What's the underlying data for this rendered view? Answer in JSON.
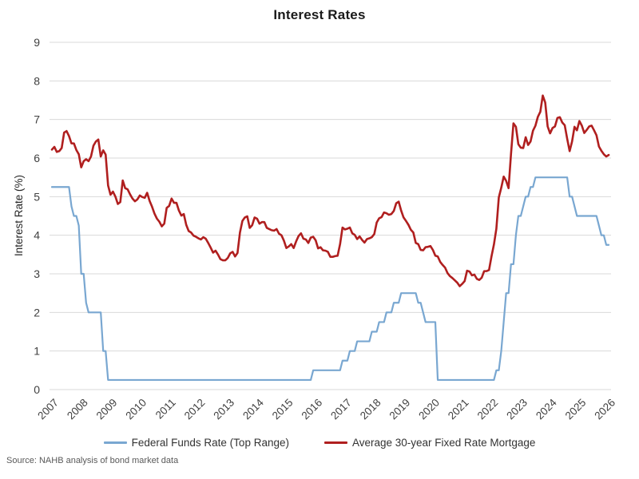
{
  "title": "Interest Rates",
  "y_axis_title": "Interest Rate (%)",
  "source": "Source: NAHB analysis of bond market data",
  "colors": {
    "grid": "#d9d9d9",
    "tick_text": "#404040",
    "background": "#ffffff"
  },
  "legend": [
    {
      "label": "Federal Funds Rate (Top Range)",
      "color": "#79A7D1"
    },
    {
      "label": "Average 30-year Fixed Rate Mortgage",
      "color": "#B01F1F"
    }
  ],
  "chart_data": {
    "type": "line",
    "title": "Interest Rates",
    "xlabel": "",
    "ylabel": "Interest Rate (%)",
    "ylim": [
      0,
      9
    ],
    "xlim": [
      2007,
      2026.08
    ],
    "y_ticks": [
      0,
      1,
      2,
      3,
      4,
      5,
      6,
      7,
      8,
      9
    ],
    "x_ticks": [
      "2007",
      "2008",
      "2009",
      "2010",
      "2011",
      "2012",
      "2013",
      "2014",
      "2015",
      "2016",
      "2017",
      "2018",
      "2019",
      "2020",
      "2021",
      "2022",
      "2023",
      "2024",
      "2025",
      "2026"
    ],
    "grid": "horizontal",
    "legend_position": "bottom",
    "x_start_year": 2007,
    "x_interval": "monthly",
    "series": [
      {
        "name": "Federal Funds Rate (Top Range)",
        "color": "#79A7D1",
        "stroke_width": 2.2,
        "values": [
          5.25,
          5.25,
          5.25,
          5.25,
          5.25,
          5.25,
          5.25,
          5.25,
          4.75,
          4.5,
          4.5,
          4.25,
          3.0,
          3.0,
          2.25,
          2.0,
          2.0,
          2.0,
          2.0,
          2.0,
          2.0,
          1.0,
          1.0,
          0.25,
          0.25,
          0.25,
          0.25,
          0.25,
          0.25,
          0.25,
          0.25,
          0.25,
          0.25,
          0.25,
          0.25,
          0.25,
          0.25,
          0.25,
          0.25,
          0.25,
          0.25,
          0.25,
          0.25,
          0.25,
          0.25,
          0.25,
          0.25,
          0.25,
          0.25,
          0.25,
          0.25,
          0.25,
          0.25,
          0.25,
          0.25,
          0.25,
          0.25,
          0.25,
          0.25,
          0.25,
          0.25,
          0.25,
          0.25,
          0.25,
          0.25,
          0.25,
          0.25,
          0.25,
          0.25,
          0.25,
          0.25,
          0.25,
          0.25,
          0.25,
          0.25,
          0.25,
          0.25,
          0.25,
          0.25,
          0.25,
          0.25,
          0.25,
          0.25,
          0.25,
          0.25,
          0.25,
          0.25,
          0.25,
          0.25,
          0.25,
          0.25,
          0.25,
          0.25,
          0.25,
          0.25,
          0.25,
          0.25,
          0.25,
          0.25,
          0.25,
          0.25,
          0.25,
          0.25,
          0.25,
          0.25,
          0.25,
          0.25,
          0.5,
          0.5,
          0.5,
          0.5,
          0.5,
          0.5,
          0.5,
          0.5,
          0.5,
          0.5,
          0.5,
          0.5,
          0.75,
          0.75,
          0.75,
          1.0,
          1.0,
          1.0,
          1.25,
          1.25,
          1.25,
          1.25,
          1.25,
          1.25,
          1.5,
          1.5,
          1.5,
          1.75,
          1.75,
          1.75,
          2.0,
          2.0,
          2.0,
          2.25,
          2.25,
          2.25,
          2.5,
          2.5,
          2.5,
          2.5,
          2.5,
          2.5,
          2.5,
          2.25,
          2.25,
          2.0,
          1.75,
          1.75,
          1.75,
          1.75,
          1.75,
          0.25,
          0.25,
          0.25,
          0.25,
          0.25,
          0.25,
          0.25,
          0.25,
          0.25,
          0.25,
          0.25,
          0.25,
          0.25,
          0.25,
          0.25,
          0.25,
          0.25,
          0.25,
          0.25,
          0.25,
          0.25,
          0.25,
          0.25,
          0.25,
          0.5,
          0.5,
          1.0,
          1.75,
          2.5,
          2.5,
          3.25,
          3.25,
          4.0,
          4.5,
          4.5,
          4.75,
          5.0,
          5.0,
          5.25,
          5.25,
          5.5,
          5.5,
          5.5,
          5.5,
          5.5,
          5.5,
          5.5,
          5.5,
          5.5,
          5.5,
          5.5,
          5.5,
          5.5,
          5.5,
          5.0,
          5.0,
          4.75,
          4.5,
          4.5,
          4.5,
          4.5,
          4.5,
          4.5,
          4.5,
          4.5,
          4.5,
          4.25,
          4.0,
          4.0,
          3.75,
          3.75
        ]
      },
      {
        "name": "Average 30-year Fixed Rate Mortgage",
        "color": "#B01F1F",
        "stroke_width": 2.6,
        "values": [
          6.22,
          6.29,
          6.16,
          6.18,
          6.26,
          6.66,
          6.7,
          6.57,
          6.38,
          6.38,
          6.21,
          6.1,
          5.76,
          5.92,
          5.97,
          5.92,
          6.04,
          6.32,
          6.43,
          6.48,
          6.04,
          6.2,
          6.09,
          5.29,
          5.05,
          5.13,
          5.0,
          4.81,
          4.86,
          5.42,
          5.22,
          5.19,
          5.06,
          4.95,
          4.88,
          4.93,
          5.03,
          4.99,
          4.97,
          5.1,
          4.89,
          4.74,
          4.56,
          4.43,
          4.35,
          4.23,
          4.3,
          4.71,
          4.76,
          4.95,
          4.84,
          4.84,
          4.64,
          4.51,
          4.55,
          4.27,
          4.11,
          4.07,
          3.99,
          3.96,
          3.92,
          3.89,
          3.95,
          3.91,
          3.8,
          3.68,
          3.55,
          3.6,
          3.5,
          3.38,
          3.35,
          3.35,
          3.41,
          3.53,
          3.57,
          3.45,
          3.54,
          4.07,
          4.37,
          4.46,
          4.49,
          4.19,
          4.26,
          4.46,
          4.43,
          4.3,
          4.34,
          4.34,
          4.19,
          4.16,
          4.13,
          4.12,
          4.16,
          4.04,
          4.0,
          3.86,
          3.67,
          3.71,
          3.77,
          3.67,
          3.84,
          3.98,
          4.05,
          3.91,
          3.89,
          3.8,
          3.94,
          3.96,
          3.87,
          3.66,
          3.69,
          3.61,
          3.6,
          3.57,
          3.44,
          3.44,
          3.46,
          3.47,
          3.77,
          4.2,
          4.15,
          4.17,
          4.2,
          4.05,
          4.01,
          3.9,
          3.97,
          3.88,
          3.81,
          3.9,
          3.92,
          3.95,
          4.03,
          4.33,
          4.44,
          4.47,
          4.59,
          4.57,
          4.53,
          4.55,
          4.63,
          4.83,
          4.87,
          4.64,
          4.46,
          4.37,
          4.27,
          4.14,
          4.07,
          3.8,
          3.77,
          3.62,
          3.61,
          3.69,
          3.7,
          3.72,
          3.62,
          3.47,
          3.45,
          3.31,
          3.23,
          3.16,
          3.02,
          2.94,
          2.89,
          2.83,
          2.77,
          2.68,
          2.74,
          2.81,
          3.08,
          3.06,
          2.96,
          2.98,
          2.87,
          2.84,
          2.9,
          3.07,
          3.07,
          3.1,
          3.45,
          3.76,
          4.17,
          4.98,
          5.23,
          5.52,
          5.41,
          5.22,
          6.11,
          6.9,
          6.81,
          6.36,
          6.27,
          6.26,
          6.54,
          6.34,
          6.43,
          6.71,
          6.84,
          7.07,
          7.2,
          7.62,
          7.44,
          6.82,
          6.64,
          6.78,
          6.82,
          7.04,
          7.06,
          6.92,
          6.85,
          6.5,
          6.18,
          6.43,
          6.81,
          6.72,
          6.96,
          6.84,
          6.65,
          6.73,
          6.82,
          6.84,
          6.72,
          6.59,
          6.3,
          6.19,
          6.1,
          6.04,
          6.08
        ]
      }
    ]
  }
}
